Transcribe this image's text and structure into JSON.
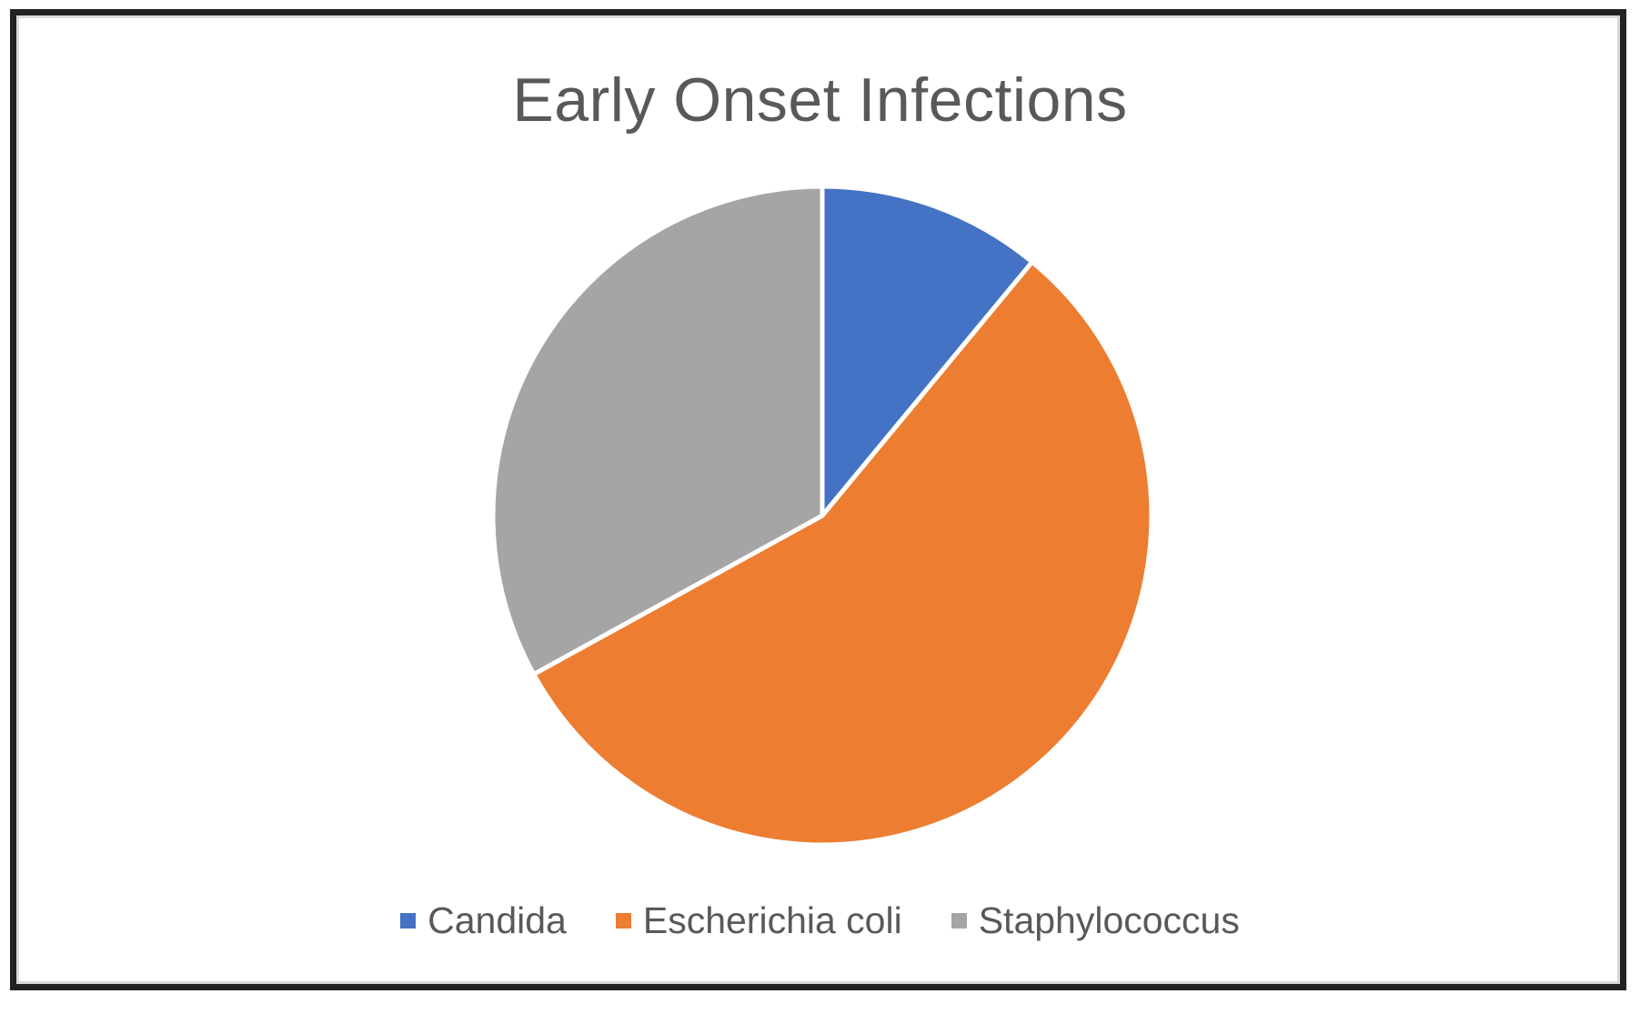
{
  "chart_data": {
    "type": "pie",
    "title": "Early Onset Infections",
    "categories": [
      "Candida",
      "Escherichia coli",
      "Staphylococcus"
    ],
    "values": [
      11,
      56,
      33
    ],
    "value_unit": "percent-of-circle (estimated from slice angles)",
    "colors": [
      "#4472C4",
      "#ED7D31",
      "#A5A5A5"
    ],
    "start_angle_deg": 0,
    "direction": "clockwise",
    "slice_separator_color": "#ffffff",
    "legend_position": "bottom",
    "title_color": "#595959",
    "legend_text_color": "#595959",
    "frame_border_color": "#242122",
    "frame_inner_line_color": "#d9dadd"
  }
}
